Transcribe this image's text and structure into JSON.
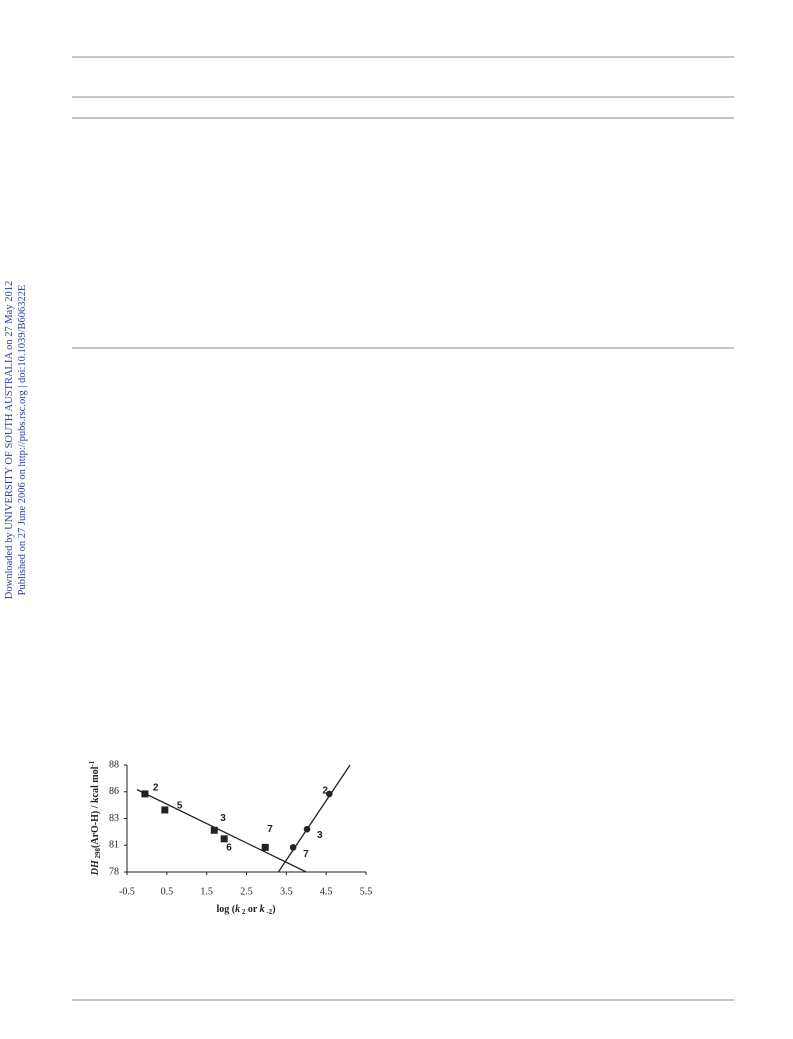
{
  "side_text": [
    "Downloaded by UNIVERSITY OF SOUTH AUSTRALIA on 27 May 2012",
    "Published on 27 June 2006 on http://pubs.rsc.org | doi:10.1039/B606322E"
  ],
  "chart_data": {
    "type": "scatter",
    "x_label": [
      "log (",
      "k",
      " 2",
      " or ",
      "k",
      " -2",
      ")"
    ],
    "y_label": [
      "DH",
      " 298",
      "(ArO-H) / kcal mol",
      "-1"
    ],
    "xlim": [
      -0.5,
      5.5
    ],
    "xticks": [
      -0.5,
      0.5,
      1.5,
      2.5,
      3.5,
      4.5,
      5.5
    ],
    "ylim": [
      78,
      88
    ],
    "yticks": [
      78,
      {
        "value": 80.5,
        "label": "81"
      },
      83,
      {
        "value": 85.5,
        "label": "86"
      },
      88
    ],
    "series": [
      {
        "marker": "square",
        "color": "#222",
        "x": [
          -0.05,
          0.45,
          1.69,
          1.94,
          2.97
        ],
        "values": [
          85.3,
          83.8,
          81.9,
          81.1,
          80.3
        ],
        "labels": [
          "2",
          "5",
          "3",
          "6",
          "7"
        ]
      },
      {
        "marker": "circle",
        "color": "#222",
        "x": [
          3.67,
          4.02,
          4.58
        ],
        "values": [
          80.3,
          82.0,
          85.3
        ],
        "labels": [
          "7",
          "3",
          "2"
        ]
      },
      {
        "marker": "line",
        "color": "#222",
        "x": [
          -0.25,
          4.0
        ],
        "values": [
          85.7,
          78
        ]
      },
      {
        "marker": "line",
        "color": "#222",
        "x": [
          3.3,
          5.1
        ],
        "values": [
          78,
          88
        ]
      }
    ]
  }
}
